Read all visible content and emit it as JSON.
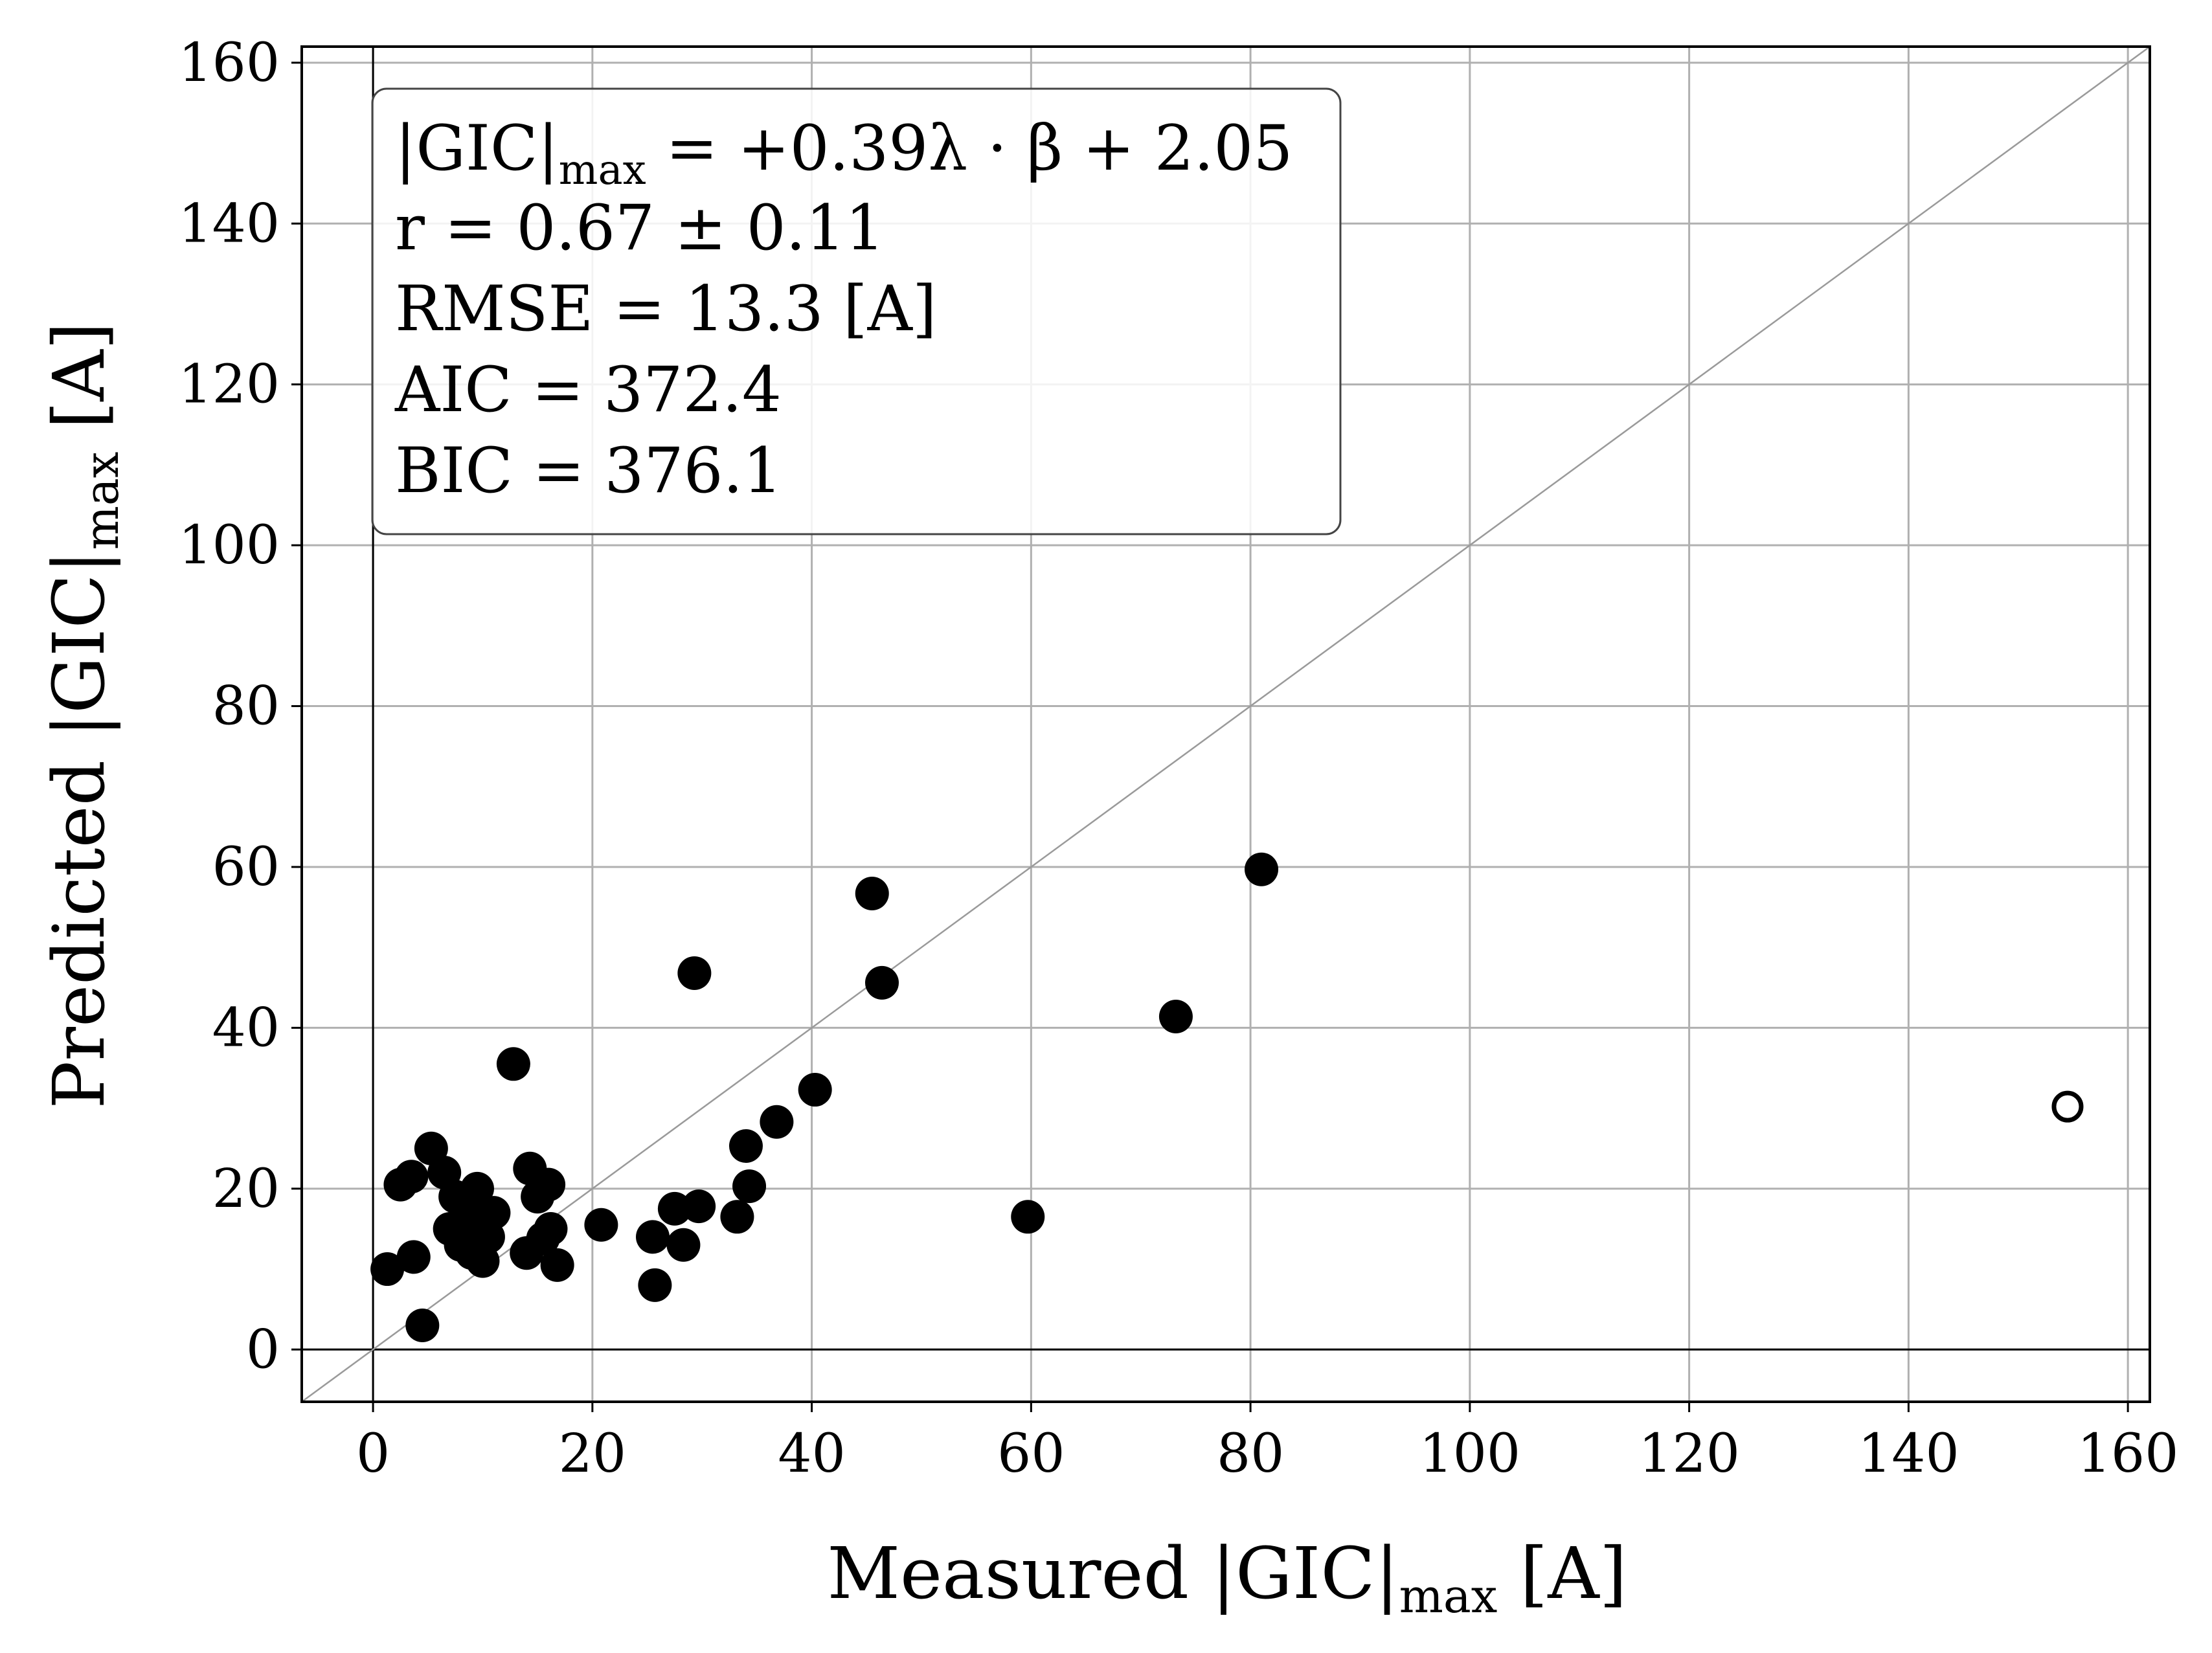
{
  "chart_data": {
    "type": "scatter",
    "xlabel": {
      "main": "Measured |GIC|",
      "sub": "max",
      "unit": " [A]"
    },
    "ylabel": {
      "main": "Predicted |GIC|",
      "sub": "max",
      "unit": " [A]"
    },
    "xlim": [
      -6.5,
      162
    ],
    "ylim": [
      -6.5,
      162
    ],
    "x_ticks": [
      0,
      20,
      40,
      60,
      80,
      100,
      120,
      140,
      160
    ],
    "y_ticks": [
      0,
      20,
      40,
      60,
      80,
      100,
      120,
      140,
      160
    ],
    "grid": true,
    "reference_line": "y = x",
    "zero_lines": true,
    "annotation": {
      "equation": {
        "lhs": "|GIC|",
        "sub": "max",
        "rhs": " = +0.39λ · β + 2.05"
      },
      "lines": [
        "r = 0.67 ± 0.11",
        "RMSE = 13.3 [A]",
        "AIC = 372.4",
        "BIC = 376.1"
      ],
      "position": "top-left"
    },
    "series": [
      {
        "marker": "filled",
        "color": "#000000",
        "points": [
          [
            1.3,
            10
          ],
          [
            2.5,
            20.5
          ],
          [
            3.5,
            21.5
          ],
          [
            3.7,
            11.5
          ],
          [
            4.5,
            3
          ],
          [
            5.3,
            25
          ],
          [
            6.5,
            22
          ],
          [
            7,
            15
          ],
          [
            7.5,
            19
          ],
          [
            8,
            13
          ],
          [
            8.5,
            17
          ],
          [
            9,
            12
          ],
          [
            9.5,
            20
          ],
          [
            9.8,
            16
          ],
          [
            10,
            11
          ],
          [
            10.5,
            14
          ],
          [
            11,
            17
          ],
          [
            7.8,
            14.8
          ],
          [
            8.8,
            15.5
          ],
          [
            12.8,
            35.5
          ],
          [
            14,
            12
          ],
          [
            14.3,
            22.5
          ],
          [
            15,
            19
          ],
          [
            16,
            20.5
          ],
          [
            15.5,
            13.8
          ],
          [
            16.2,
            15
          ],
          [
            16.8,
            10.5
          ],
          [
            20.8,
            15.5
          ],
          [
            25.5,
            14
          ],
          [
            25.7,
            8
          ],
          [
            27.5,
            17.5
          ],
          [
            28.3,
            13
          ],
          [
            29.3,
            46.8
          ],
          [
            29.7,
            17.8
          ],
          [
            33.2,
            16.5
          ],
          [
            34,
            25.3
          ],
          [
            34.3,
            20.3
          ],
          [
            36.8,
            28.3
          ],
          [
            40.3,
            32.3
          ],
          [
            45.5,
            56.7
          ],
          [
            46.4,
            45.6
          ],
          [
            59.7,
            16.5
          ],
          [
            73.2,
            41.4
          ],
          [
            81,
            59.7
          ]
        ]
      },
      {
        "marker": "hollow",
        "color": "#000000",
        "points": [
          [
            154.5,
            30.2
          ]
        ]
      }
    ]
  }
}
